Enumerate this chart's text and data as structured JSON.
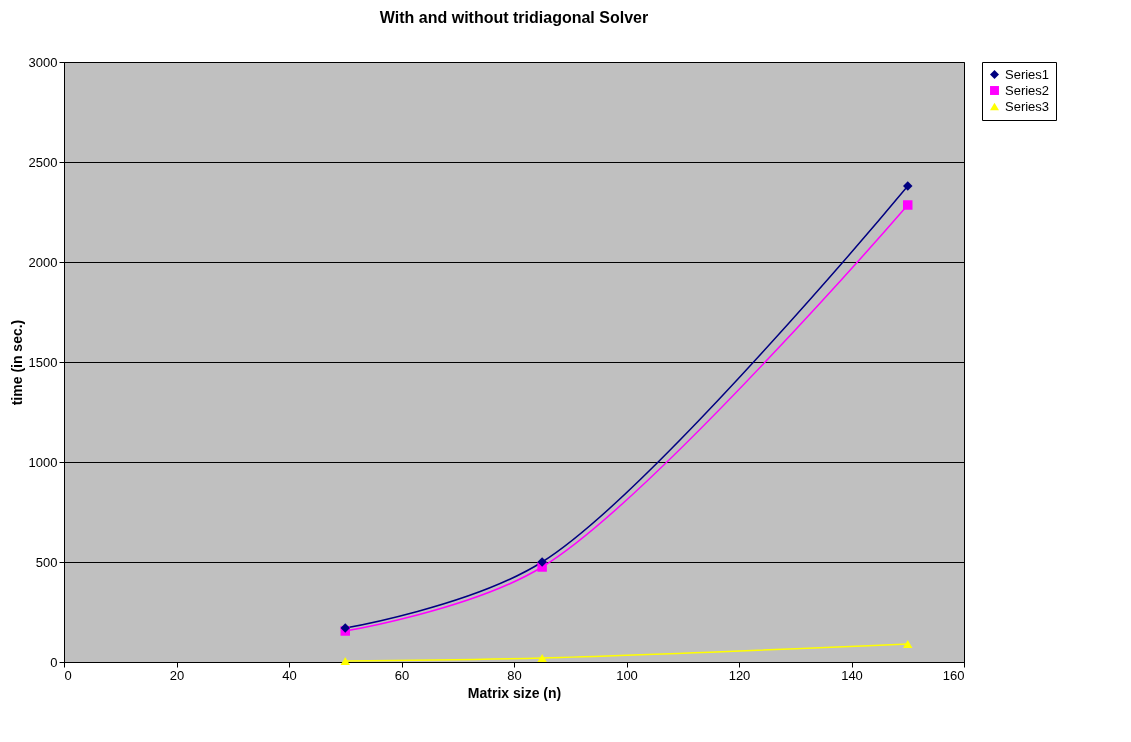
{
  "chart_data": {
    "type": "line",
    "title": "With and without tridiagonal Solver",
    "xlabel": "Matrix size (n)",
    "ylabel": "time (in sec.)",
    "x": [
      50,
      85,
      150
    ],
    "series": [
      {
        "name": "Series1",
        "color": "#000080",
        "marker": "diamond",
        "values": [
          170,
          500,
          2380
        ]
      },
      {
        "name": "Series2",
        "color": "#ff00ff",
        "marker": "square",
        "values": [
          155,
          475,
          2285
        ]
      },
      {
        "name": "Series3",
        "color": "#ffff00",
        "marker": "triangle",
        "values": [
          5,
          20,
          90
        ]
      }
    ],
    "xlim": [
      0,
      160
    ],
    "xticks": [
      0,
      20,
      40,
      60,
      80,
      100,
      120,
      140,
      160
    ],
    "ylim": [
      0,
      3000
    ],
    "yticks": [
      0,
      500,
      1000,
      1500,
      2000,
      2500,
      3000
    ],
    "grid": "y",
    "legend": "right",
    "line_style": "solid"
  }
}
